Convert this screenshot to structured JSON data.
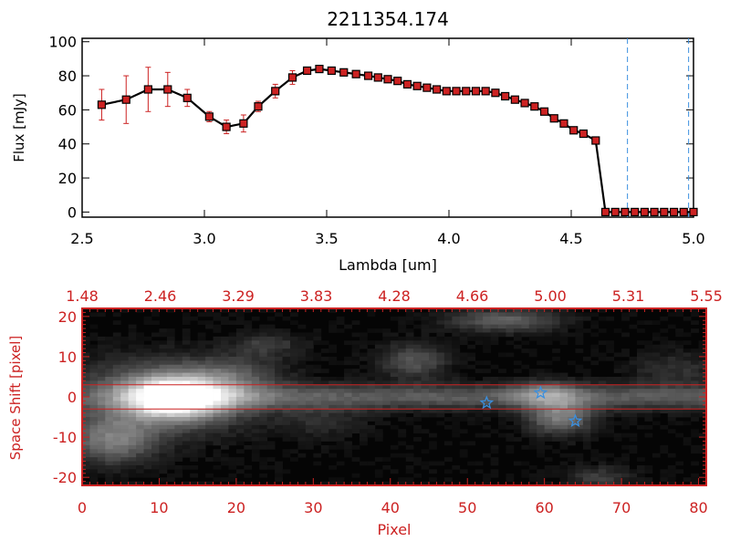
{
  "colors": {
    "axis": "#000000",
    "accent": "#cc2222",
    "marker": "#cc2222",
    "dashed": "#3a8fdf",
    "star": "#3a8fdf"
  },
  "chart_data": [
    {
      "type": "line",
      "title": "2211354.174",
      "xlabel": "Lambda [um]",
      "ylabel": "Flux [mJy]",
      "xlim": [
        2.5,
        5.0
      ],
      "ylim": [
        -3,
        102
      ],
      "xticks": [
        "2.5",
        "3.0",
        "3.5",
        "4.0",
        "4.5",
        "5.0"
      ],
      "xtick_values": [
        2.5,
        3.0,
        3.5,
        4.0,
        4.5,
        5.0
      ],
      "yticks": [
        "0",
        "20",
        "40",
        "60",
        "80",
        "100"
      ],
      "ytick_values": [
        0,
        20,
        40,
        60,
        80,
        100
      ],
      "series": [
        {
          "x": [
            2.58,
            2.68,
            2.77,
            2.85,
            2.93,
            3.02,
            3.09,
            3.16,
            3.22,
            3.29,
            3.36,
            3.42,
            3.47,
            3.52,
            3.57,
            3.62,
            3.67,
            3.71,
            3.75,
            3.79,
            3.83,
            3.87,
            3.91,
            3.95,
            3.99,
            4.03,
            4.07,
            4.11,
            4.15,
            4.19,
            4.23,
            4.27,
            4.31,
            4.35,
            4.39,
            4.43,
            4.47,
            4.51,
            4.55,
            4.6,
            4.64,
            4.68,
            4.72,
            4.76,
            4.8,
            4.84,
            4.88,
            4.92,
            4.96,
            5.0
          ],
          "y": [
            63,
            66,
            72,
            72,
            67,
            56,
            50,
            52,
            62,
            71,
            79,
            83,
            84,
            83,
            82,
            81,
            80,
            79,
            78,
            77,
            75,
            74,
            73,
            72,
            71,
            71,
            71,
            71,
            71,
            70,
            68,
            66,
            64,
            62,
            59,
            55,
            52,
            48,
            46,
            42,
            0,
            0,
            0,
            0,
            0,
            0,
            0,
            0,
            0,
            0
          ],
          "err": [
            9,
            14,
            13,
            10,
            5,
            3,
            4,
            5,
            3,
            4,
            4,
            0,
            0,
            0,
            0,
            0,
            0,
            0,
            0,
            0,
            0,
            0,
            0,
            0,
            0,
            0,
            0,
            0,
            0,
            0,
            0,
            0,
            0,
            0,
            0,
            0,
            0,
            0,
            0,
            0,
            0,
            0,
            0,
            0,
            0,
            0,
            0,
            0,
            0,
            0
          ]
        }
      ],
      "vlines": [
        4.73,
        4.98
      ]
    },
    {
      "type": "heatmap",
      "xlabel": "Pixel",
      "ylabel": "Space Shift [pixel]",
      "xlim": [
        0,
        81
      ],
      "ylim": [
        -22,
        22
      ],
      "xticks": [
        "0",
        "10",
        "20",
        "30",
        "40",
        "50",
        "60",
        "70",
        "80"
      ],
      "xtick_values": [
        0,
        10,
        20,
        30,
        40,
        50,
        60,
        70,
        80
      ],
      "yticks": [
        "-20",
        "-10",
        "0",
        "10",
        "20"
      ],
      "ytick_values": [
        -20,
        -10,
        0,
        10,
        20
      ],
      "top_ticks": [
        "1.48",
        "2.46",
        "3.29",
        "3.83",
        "4.28",
        "4.66",
        "5.00",
        "5.31",
        "5.55"
      ],
      "hlines": [
        3,
        -3
      ],
      "stars": [
        {
          "x": 52.5,
          "y": -1.5
        },
        {
          "x": 59.5,
          "y": 1.0
        },
        {
          "x": 64.0,
          "y": -6.0
        }
      ],
      "blobs": [
        {
          "x": 12,
          "y": 0,
          "sx": 5,
          "sy": 4,
          "v": 0.95
        },
        {
          "x": 9,
          "y": 0,
          "sx": 10,
          "sy": 7,
          "v": 0.25
        },
        {
          "x": 4,
          "y": -11,
          "sx": 4,
          "sy": 4,
          "v": 0.4
        },
        {
          "x": 20,
          "y": 6,
          "sx": 4,
          "sy": 3,
          "v": 0.2
        },
        {
          "x": 24,
          "y": 13,
          "sx": 3,
          "sy": 2,
          "v": 0.2
        },
        {
          "x": 43,
          "y": 9,
          "sx": 3,
          "sy": 3,
          "v": 0.3
        },
        {
          "x": 62,
          "y": -5,
          "sx": 3,
          "sy": 3,
          "v": 0.45
        },
        {
          "x": 60,
          "y": 1,
          "sx": 3,
          "sy": 2,
          "v": 0.3
        },
        {
          "x": 55,
          "y": 19,
          "sx": 5,
          "sy": 2,
          "v": 0.35
        },
        {
          "x": 77,
          "y": 7,
          "sx": 4,
          "sy": 3,
          "v": 0.15
        },
        {
          "x": 67,
          "y": -20,
          "sx": 3,
          "sy": 2,
          "v": 0.2
        },
        {
          "x": 31,
          "y": -6,
          "sx": 4,
          "sy": 3,
          "v": 0.12
        }
      ]
    }
  ]
}
